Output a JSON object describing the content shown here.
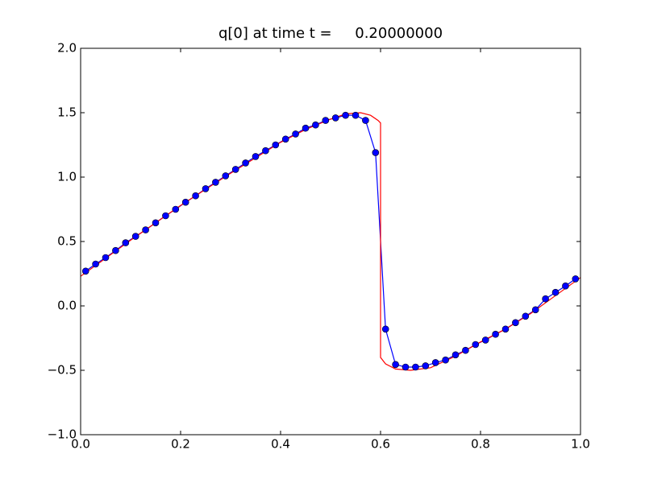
{
  "chart_data": {
    "type": "line",
    "title": "q[0] at time t =     0.20000000",
    "xlim": [
      0,
      1
    ],
    "ylim": [
      -1,
      2
    ],
    "xticks": [
      {
        "value": 0,
        "label": "0.0"
      },
      {
        "value": 0.2,
        "label": "0.2"
      },
      {
        "value": 0.4,
        "label": "0.4"
      },
      {
        "value": 0.6,
        "label": "0.6"
      },
      {
        "value": 0.8,
        "label": "0.8"
      },
      {
        "value": 1,
        "label": "1.0"
      }
    ],
    "yticks": [
      {
        "value": -1,
        "label": "−1.0"
      },
      {
        "value": -0.5,
        "label": "−0.5"
      },
      {
        "value": 0,
        "label": "0.0"
      },
      {
        "value": 0.5,
        "label": "0.5"
      },
      {
        "value": 1,
        "label": "1.0"
      },
      {
        "value": 1.5,
        "label": "1.5"
      },
      {
        "value": 2,
        "label": "2.0"
      }
    ],
    "grid": false,
    "series": [
      {
        "color": "#0000ff",
        "marker": "circle",
        "x": [
          0.01,
          0.03,
          0.05,
          0.07,
          0.09,
          0.11,
          0.13,
          0.15,
          0.17,
          0.19,
          0.21,
          0.23,
          0.25,
          0.27,
          0.29,
          0.31,
          0.33,
          0.35,
          0.37,
          0.39,
          0.41,
          0.43,
          0.45,
          0.47,
          0.49,
          0.51,
          0.53,
          0.55,
          0.57,
          0.59,
          0.61,
          0.63,
          0.65,
          0.67,
          0.69,
          0.71,
          0.73,
          0.75,
          0.77,
          0.79,
          0.81,
          0.83,
          0.85,
          0.87,
          0.89,
          0.91,
          0.93,
          0.95,
          0.97,
          0.99
        ],
        "values": [
          0.27,
          0.325,
          0.375,
          0.43,
          0.49,
          0.54,
          0.59,
          0.645,
          0.7,
          0.75,
          0.805,
          0.855,
          0.91,
          0.96,
          1.01,
          1.06,
          1.11,
          1.16,
          1.205,
          1.25,
          1.295,
          1.335,
          1.38,
          1.405,
          1.44,
          1.46,
          1.48,
          1.48,
          1.44,
          1.19,
          -0.18,
          -0.455,
          -0.475,
          -0.475,
          -0.465,
          -0.44,
          -0.42,
          -0.38,
          -0.345,
          -0.3,
          -0.265,
          -0.22,
          -0.18,
          -0.13,
          -0.08,
          -0.03,
          0.055,
          0.105,
          0.155,
          0.21
        ]
      },
      {
        "color": "#ff0000",
        "x": [
          0,
          0.1,
          0.2,
          0.3,
          0.4,
          0.45,
          0.5,
          0.53,
          0.56,
          0.58,
          0.595,
          0.6,
          0.6,
          0.61,
          0.63,
          0.66,
          0.7,
          0.75,
          0.8,
          0.85,
          0.9,
          0.95,
          1
        ],
        "values": [
          0.23,
          0.51,
          0.78,
          1.03,
          1.27,
          1.37,
          1.45,
          1.49,
          1.5,
          1.48,
          1.44,
          1.42,
          -0.4,
          -0.45,
          -0.49,
          -0.5,
          -0.48,
          -0.39,
          -0.28,
          -0.18,
          -0.06,
          0.08,
          0.22
        ]
      }
    ]
  }
}
